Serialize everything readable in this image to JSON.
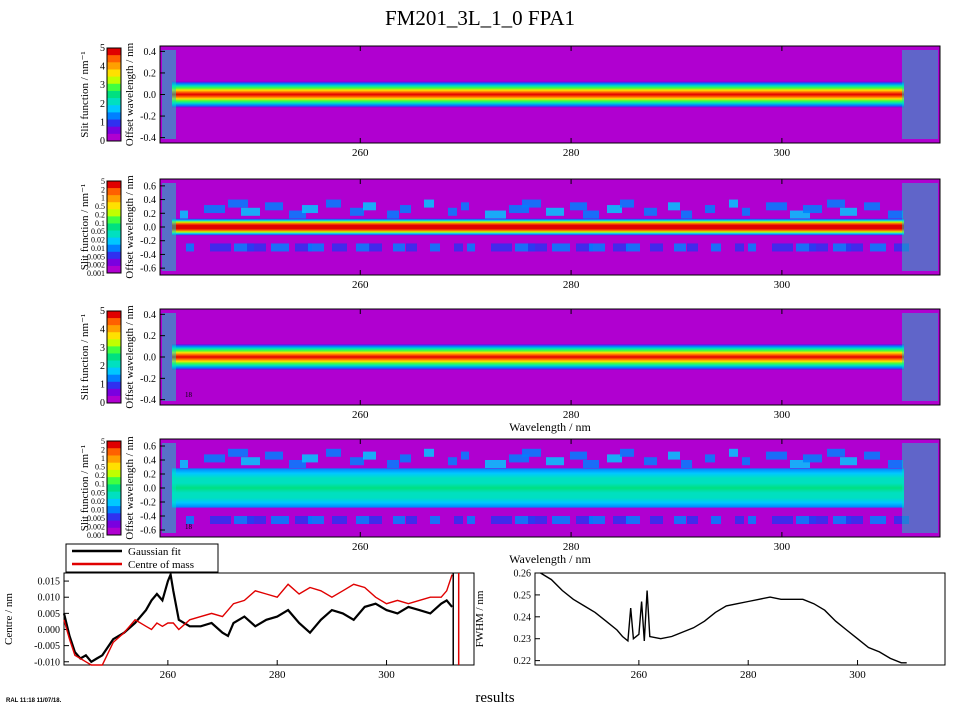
{
  "page": {
    "title": "FM201_3L_1_0 FPA1",
    "footer_stamp": "RAL 11:18 11/07/18.",
    "footer_label": "results"
  },
  "colors": {
    "contour": [
      "#b000d0",
      "#7a00e0",
      "#3030f0",
      "#0080ff",
      "#00c8ff",
      "#00e0c0",
      "#00e080",
      "#40ff40",
      "#c0ff00",
      "#ffe000",
      "#ffa000",
      "#ff6000",
      "#e00000"
    ],
    "gaussian": "#000000",
    "com": "#e00000",
    "plot_bg": "#b000d0"
  },
  "chart_data": [
    {
      "type": "heatmap",
      "name": "panel-1",
      "xlabel": "",
      "ylabel": "Offset wavelength / nm",
      "xlim": [
        241,
        315
      ],
      "ylim": [
        -0.45,
        0.45
      ],
      "xticks": [
        "260",
        "280",
        "300"
      ],
      "yticks": [
        "0.4",
        "0.2",
        "0.0",
        "-0.2",
        "-0.4"
      ],
      "colorbar": {
        "label": "Slit function / nm⁻¹",
        "scale": "linear",
        "ticks": [
          "5",
          "4",
          "3",
          "2",
          "1",
          "0"
        ]
      },
      "band_halfwidth": 0.12,
      "scale": "linear"
    },
    {
      "type": "heatmap",
      "name": "panel-2",
      "xlabel": "",
      "ylabel": "Offset wavelength / nm",
      "xlim": [
        241,
        315
      ],
      "ylim": [
        -0.7,
        0.7
      ],
      "xticks": [
        "260",
        "280",
        "300"
      ],
      "yticks": [
        "0.6",
        "0.4",
        "0.2",
        "0.0",
        "-0.2",
        "-0.4",
        "-0.6"
      ],
      "colorbar": {
        "label": "Slit function / nm⁻¹",
        "scale": "log",
        "ticks": [
          "5",
          "2",
          "1",
          "0.5",
          "0.2",
          "0.1",
          "0.05",
          "0.02",
          "0.01",
          "0.005",
          "0.002",
          "0.001"
        ]
      },
      "band_halfwidth": 0.12,
      "scale": "log"
    },
    {
      "type": "heatmap",
      "name": "panel-3",
      "xlabel": "Wavelength / nm",
      "ylabel": "Offset wavelength / nm",
      "xlim": [
        241,
        315
      ],
      "ylim": [
        -0.45,
        0.45
      ],
      "xticks": [
        "260",
        "280",
        "300"
      ],
      "yticks": [
        "0.4",
        "0.2",
        "0.0",
        "-0.2",
        "-0.4"
      ],
      "colorbar": {
        "label": "Slit function / nm⁻¹",
        "scale": "linear",
        "ticks": [
          "5",
          "4",
          "3",
          "2",
          "1",
          "0"
        ]
      },
      "band_halfwidth": 0.12,
      "scale": "linear",
      "annotation": "18"
    },
    {
      "type": "heatmap",
      "name": "panel-4",
      "xlabel": "Wavelength / nm",
      "ylabel": "Offset wavelength / nm",
      "xlim": [
        241,
        315
      ],
      "ylim": [
        -0.7,
        0.7
      ],
      "xticks": [
        "260",
        "280",
        "300"
      ],
      "yticks": [
        "0.6",
        "0.4",
        "0.2",
        "0.0",
        "-0.2",
        "-0.4",
        "-0.6"
      ],
      "colorbar": {
        "label": "Slit function / nm⁻¹",
        "scale": "log",
        "ticks": [
          "5",
          "2",
          "1",
          "0.5",
          "0.2",
          "0.1",
          "0.05",
          "0.02",
          "0.01",
          "0.005",
          "0.002",
          "0.001"
        ]
      },
      "band_halfwidth": 0.28,
      "scale": "residual",
      "annotation": "18"
    },
    {
      "type": "line",
      "name": "centre",
      "xlabel": "",
      "ylabel": "Centre / nm",
      "xlim": [
        241,
        316
      ],
      "ylim": [
        -0.011,
        0.0175
      ],
      "xticks": [
        "260",
        "280",
        "300"
      ],
      "yticks": [
        "0.015",
        "0.010",
        "0.005",
        "0.000",
        "-0.005",
        "-0.010"
      ],
      "legend": [
        "Gaussian fit",
        "Centre of mass"
      ],
      "series": [
        {
          "name": "Gaussian fit",
          "x": [
            241,
            242,
            243,
            244,
            245,
            246,
            247,
            248,
            250,
            252,
            254,
            256,
            257,
            258,
            259,
            260,
            260.5,
            261,
            262,
            264,
            266,
            268,
            270,
            271,
            272,
            274,
            276,
            278,
            280,
            282,
            284,
            286,
            288,
            290,
            292,
            294,
            296,
            298,
            300,
            302,
            304,
            306,
            308,
            310,
            311,
            312
          ],
          "y": [
            0.005,
            -0.002,
            -0.007,
            -0.009,
            -0.008,
            -0.01,
            -0.009,
            -0.008,
            -0.003,
            -0.001,
            0.002,
            0.006,
            0.009,
            0.011,
            0.009,
            0.015,
            0.017,
            0.012,
            0.003,
            0.001,
            0.001,
            0.002,
            -0.001,
            -0.002,
            0.002,
            0.004,
            0.001,
            0.003,
            0.004,
            0.006,
            0.002,
            -0.001,
            0.003,
            0.006,
            0.005,
            0.003,
            0.007,
            0.008,
            0.006,
            0.005,
            0.007,
            0.006,
            0.005,
            0.008,
            0.009,
            0.007
          ]
        },
        {
          "name": "Centre of mass",
          "x": [
            241,
            242,
            243,
            244,
            245,
            246,
            248,
            250,
            252,
            254,
            256,
            257,
            258,
            259,
            260,
            261,
            262,
            264,
            266,
            268,
            270,
            272,
            274,
            276,
            278,
            280,
            282,
            284,
            286,
            288,
            290,
            292,
            294,
            296,
            298,
            300,
            302,
            304,
            306,
            308,
            310,
            311,
            312
          ],
          "y": [
            0.003,
            -0.003,
            -0.008,
            -0.009,
            -0.01,
            -0.011,
            -0.011,
            -0.004,
            -0.001,
            0.003,
            0.001,
            0.0,
            0.002,
            0.001,
            0.002,
            0.002,
            0.0,
            0.003,
            0.004,
            0.005,
            0.004,
            0.008,
            0.009,
            0.012,
            0.011,
            0.01,
            0.014,
            0.011,
            0.013,
            0.012,
            0.01,
            0.012,
            0.014,
            0.013,
            0.01,
            0.008,
            0.009,
            0.008,
            0.009,
            0.01,
            0.01,
            0.012,
            0.017
          ]
        }
      ]
    },
    {
      "type": "line",
      "name": "fwhm",
      "xlabel": "",
      "ylabel": "FWHM / nm",
      "xlim": [
        241,
        316
      ],
      "ylim": [
        0.218,
        0.26
      ],
      "xticks": [
        "260",
        "280",
        "300"
      ],
      "yticks": [
        "0.26",
        "0.25",
        "0.24",
        "0.23",
        "0.22"
      ],
      "series": [
        {
          "name": "",
          "x": [
            242,
            244,
            246,
            248,
            250,
            252,
            254,
            256,
            257,
            258,
            258.5,
            259,
            260,
            260.5,
            261,
            261.5,
            262,
            264,
            266,
            268,
            270,
            272,
            274,
            276,
            278,
            280,
            282,
            284,
            286,
            288,
            290,
            292,
            294,
            296,
            298,
            300,
            302,
            304,
            306,
            308,
            309
          ],
          "y": [
            0.26,
            0.257,
            0.252,
            0.248,
            0.245,
            0.242,
            0.238,
            0.234,
            0.231,
            0.229,
            0.244,
            0.23,
            0.232,
            0.247,
            0.229,
            0.252,
            0.231,
            0.23,
            0.231,
            0.233,
            0.235,
            0.238,
            0.242,
            0.245,
            0.246,
            0.247,
            0.248,
            0.249,
            0.248,
            0.248,
            0.248,
            0.246,
            0.243,
            0.238,
            0.234,
            0.23,
            0.226,
            0.224,
            0.221,
            0.219,
            0.219
          ]
        }
      ]
    }
  ]
}
